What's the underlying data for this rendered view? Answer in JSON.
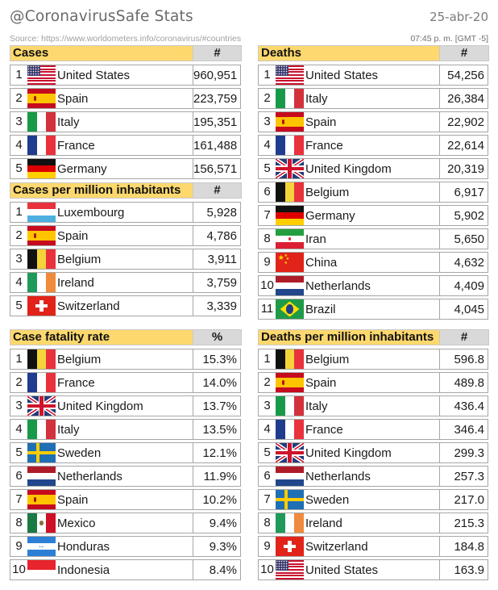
{
  "header": {
    "title": "@CoronavirusSafe Stats",
    "date": "25-abr-20",
    "source": "Source: https://www.worldometers.info/coronavirus/#countries",
    "time": "07:45 p. m. [GMT -5]"
  },
  "colors": {
    "header_label_bg": "#fcd86e",
    "header_unit_bg": "#d9d9d9",
    "border": "#a6a6a6"
  },
  "tables": [
    {
      "id": "cases",
      "title": "Cases",
      "unit": "#",
      "rows": [
        {
          "rank": "1",
          "flag": "us",
          "country": "United States",
          "value": "960,951"
        },
        {
          "rank": "2",
          "flag": "es",
          "country": "Spain",
          "value": "223,759"
        },
        {
          "rank": "3",
          "flag": "it",
          "country": "Italy",
          "value": "195,351"
        },
        {
          "rank": "4",
          "flag": "fr",
          "country": "France",
          "value": "161,488"
        },
        {
          "rank": "5",
          "flag": "de",
          "country": "Germany",
          "value": "156,571"
        }
      ]
    },
    {
      "id": "cases-per-million",
      "title": "Cases per million inhabitants",
      "unit": "#",
      "rows": [
        {
          "rank": "1",
          "flag": "lu",
          "country": "Luxembourg",
          "value": "5,928"
        },
        {
          "rank": "2",
          "flag": "es",
          "country": "Spain",
          "value": "4,786"
        },
        {
          "rank": "3",
          "flag": "be",
          "country": "Belgium",
          "value": "3,911"
        },
        {
          "rank": "4",
          "flag": "ie",
          "country": "Ireland",
          "value": "3,759"
        },
        {
          "rank": "5",
          "flag": "ch",
          "country": "Switzerland",
          "value": "3,339"
        }
      ]
    },
    {
      "id": "case-fatality-rate",
      "title": "Case fatality rate",
      "unit": "%",
      "rows": [
        {
          "rank": "1",
          "flag": "be",
          "country": "Belgium",
          "value": "15.3%"
        },
        {
          "rank": "2",
          "flag": "fr",
          "country": "France",
          "value": "14.0%"
        },
        {
          "rank": "3",
          "flag": "gb",
          "country": "United Kingdom",
          "value": "13.7%"
        },
        {
          "rank": "4",
          "flag": "it",
          "country": "Italy",
          "value": "13.5%"
        },
        {
          "rank": "5",
          "flag": "se",
          "country": "Sweden",
          "value": "12.1%"
        },
        {
          "rank": "6",
          "flag": "nl",
          "country": "Netherlands",
          "value": "11.9%"
        },
        {
          "rank": "7",
          "flag": "es",
          "country": "Spain",
          "value": "10.2%"
        },
        {
          "rank": "8",
          "flag": "mx",
          "country": "Mexico",
          "value": "9.4%"
        },
        {
          "rank": "9",
          "flag": "hn",
          "country": "Honduras",
          "value": "9.3%"
        },
        {
          "rank": "10",
          "flag": "id",
          "country": "Indonesia",
          "value": "8.4%"
        }
      ]
    },
    {
      "id": "deaths",
      "title": "Deaths",
      "unit": "#",
      "rows": [
        {
          "rank": "1",
          "flag": "us",
          "country": "United States",
          "value": "54,256"
        },
        {
          "rank": "2",
          "flag": "it",
          "country": "Italy",
          "value": "26,384"
        },
        {
          "rank": "3",
          "flag": "es",
          "country": "Spain",
          "value": "22,902"
        },
        {
          "rank": "4",
          "flag": "fr",
          "country": "France",
          "value": "22,614"
        },
        {
          "rank": "5",
          "flag": "gb",
          "country": "United Kingdom",
          "value": "20,319"
        },
        {
          "rank": "6",
          "flag": "be",
          "country": "Belgium",
          "value": "6,917"
        },
        {
          "rank": "7",
          "flag": "de",
          "country": "Germany",
          "value": "5,902"
        },
        {
          "rank": "8",
          "flag": "ir",
          "country": "Iran",
          "value": "5,650"
        },
        {
          "rank": "9",
          "flag": "cn",
          "country": "China",
          "value": "4,632"
        },
        {
          "rank": "10",
          "flag": "nl",
          "country": "Netherlands",
          "value": "4,409"
        },
        {
          "rank": "11",
          "flag": "br",
          "country": "Brazil",
          "value": "4,045"
        }
      ]
    },
    {
      "id": "deaths-per-million",
      "title": "Deaths per million inhabitants",
      "unit": "#",
      "rows": [
        {
          "rank": "1",
          "flag": "be",
          "country": "Belgium",
          "value": "596.8"
        },
        {
          "rank": "2",
          "flag": "es",
          "country": "Spain",
          "value": "489.8"
        },
        {
          "rank": "3",
          "flag": "it",
          "country": "Italy",
          "value": "436.4"
        },
        {
          "rank": "4",
          "flag": "fr",
          "country": "France",
          "value": "346.4"
        },
        {
          "rank": "5",
          "flag": "gb",
          "country": "United Kingdom",
          "value": "299.3"
        },
        {
          "rank": "6",
          "flag": "nl",
          "country": "Netherlands",
          "value": "257.3"
        },
        {
          "rank": "7",
          "flag": "se",
          "country": "Sweden",
          "value": "217.0"
        },
        {
          "rank": "8",
          "flag": "ie",
          "country": "Ireland",
          "value": "215.3"
        },
        {
          "rank": "9",
          "flag": "ch",
          "country": "Switzerland",
          "value": "184.8"
        },
        {
          "rank": "10",
          "flag": "us",
          "country": "United States",
          "value": "163.9"
        }
      ]
    }
  ]
}
